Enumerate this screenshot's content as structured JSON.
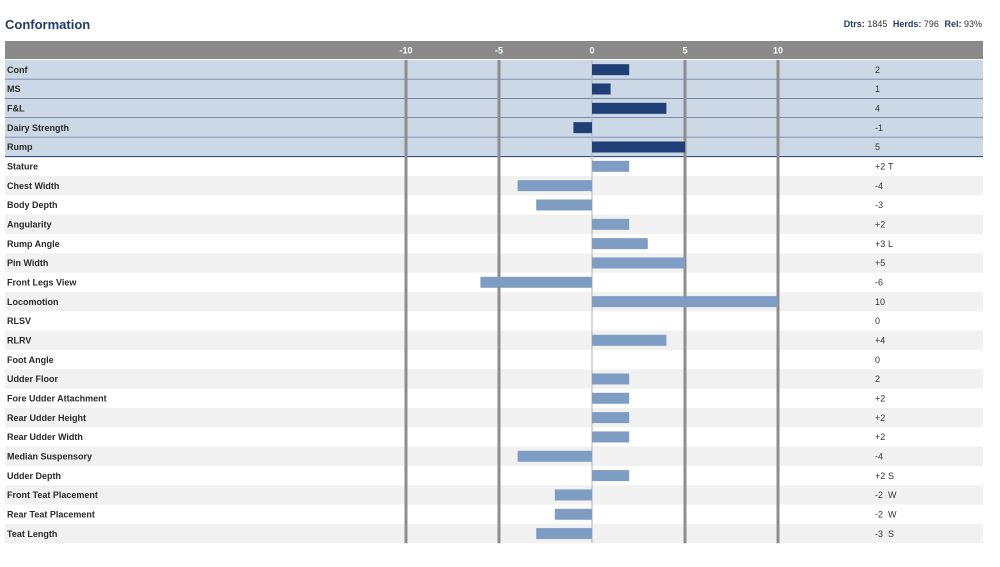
{
  "header": {
    "title": "Conformation",
    "dtrs_label": "Dtrs:",
    "dtrs_value": "1845",
    "herds_label": "Herds:",
    "herds_value": "796",
    "rel_label": "Rel:",
    "rel_value": "93%"
  },
  "colors": {
    "header_bar": "#8a8a8a",
    "highlight_row": "#cdd8e6",
    "highlight_bar": "#1f3f76",
    "trait_bar": "#7f9cc3",
    "stripe": "#f1f1f1",
    "gridline": "#8e8e8e"
  },
  "chart_data": {
    "type": "bar",
    "orientation": "horizontal",
    "title": "Conformation",
    "xlim": [
      -10,
      10
    ],
    "ticks": [
      -10,
      -5,
      0,
      5,
      10
    ],
    "tick_labels": [
      "-10",
      "-5",
      "0",
      "5",
      "10"
    ],
    "categories": [
      "Conf",
      "MS",
      "F&L",
      "Dairy Strength",
      "Rump",
      "Stature",
      "Chest Width",
      "Body Depth",
      "Angularity",
      "Rump Angle",
      "Pin Width",
      "Front Legs View",
      "Locomotion",
      "RLSV",
      "RLRV",
      "Foot Angle",
      "Udder Floor",
      "Fore Udder Attachment",
      "Rear Udder Height",
      "Rear Udder Width",
      "Median Suspensory",
      "Udder Depth",
      "Front Teat Placement",
      "Rear Teat Placement",
      "Teat Length"
    ],
    "values": [
      2,
      1,
      4,
      -1,
      5,
      2,
      -4,
      -3,
      2,
      3,
      5,
      -6,
      10,
      0,
      4,
      0,
      2,
      2,
      2,
      2,
      -4,
      2,
      -2,
      -2,
      -3
    ],
    "value_labels": [
      "2",
      "1",
      "4",
      "-1",
      "5",
      "+2",
      "-4",
      "-3",
      "+2",
      "+3",
      "+5",
      "-6",
      "10",
      "0",
      "+4",
      "0",
      "2",
      "+2",
      "+2",
      "+2",
      "-4",
      "+2",
      "-2",
      "-2",
      "-3"
    ],
    "suffixes": [
      "",
      "",
      "",
      "",
      "",
      "T",
      "",
      "",
      "",
      "L",
      "",
      "",
      "",
      "",
      "",
      "",
      "",
      "",
      "",
      "",
      "",
      "S",
      "W",
      "W",
      "S"
    ],
    "highlighted": [
      true,
      true,
      true,
      true,
      true,
      false,
      false,
      false,
      false,
      false,
      false,
      false,
      false,
      false,
      false,
      false,
      false,
      false,
      false,
      false,
      false,
      false,
      false,
      false,
      false
    ]
  }
}
